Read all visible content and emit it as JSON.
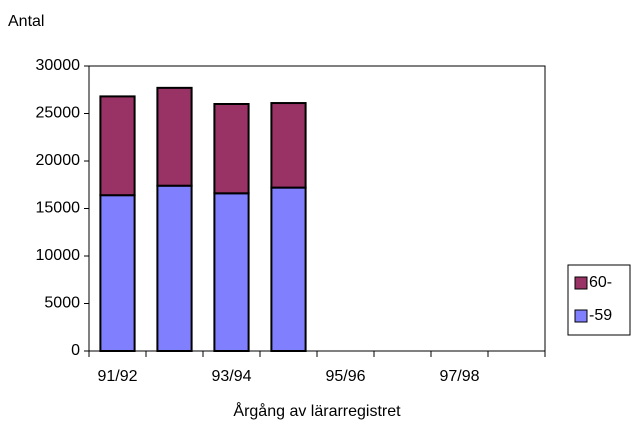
{
  "chart_data": {
    "type": "stacked_bar",
    "y_label": "Antal",
    "x_label": "Årgång av lärarregistret",
    "categories": [
      "91/92",
      null,
      "93/94",
      null,
      "95/96",
      null,
      "97/98",
      null
    ],
    "series": [
      {
        "name": "-59",
        "color": "#8080ff",
        "values": [
          16400,
          17400,
          16600,
          17200,
          null,
          null,
          null,
          null
        ]
      },
      {
        "name": "60-",
        "color": "#993366",
        "values": [
          10400,
          10300,
          9400,
          8900,
          null,
          null,
          null,
          null
        ]
      }
    ],
    "ylim": [
      0,
      30000
    ],
    "yticks": [
      0,
      5000,
      10000,
      15000,
      20000,
      25000,
      30000
    ],
    "grid": false,
    "legend": "right"
  }
}
